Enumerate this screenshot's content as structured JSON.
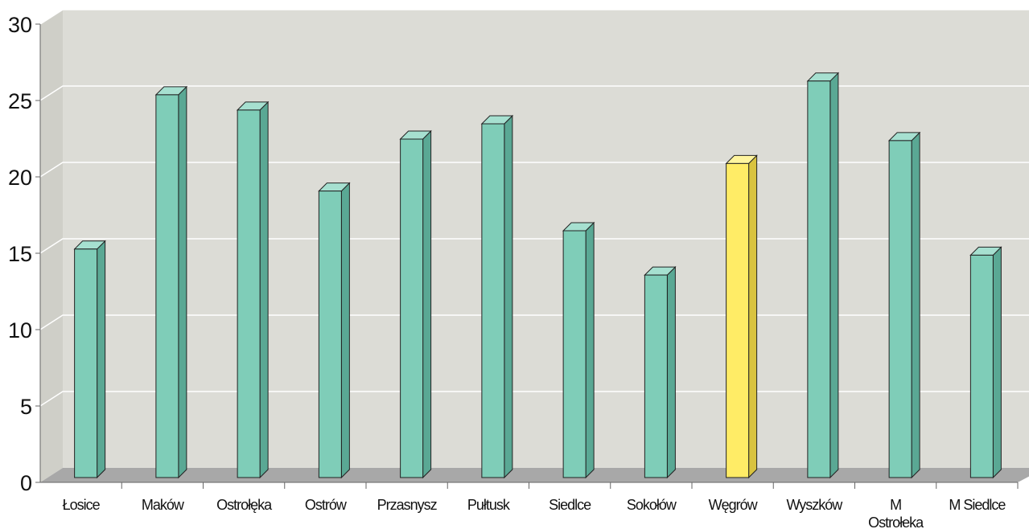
{
  "chart_data": {
    "type": "bar",
    "title": "",
    "xlabel": "",
    "ylabel": "",
    "ylim": [
      0,
      30
    ],
    "yticks": [
      "0",
      "5",
      "10",
      "15",
      "20",
      "25",
      "30"
    ],
    "categories": [
      "Łosice",
      "Maków",
      "Ostrołęka",
      "Ostrów",
      "Przasnysz",
      "Pułtusk",
      "Siedlce",
      "Sokołów",
      "Węgrów",
      "Wyszków",
      "M Ostrołeka",
      "M Siedlce"
    ],
    "category_lines": [
      [
        "Łosice"
      ],
      [
        "Maków"
      ],
      [
        "Ostrołęka"
      ],
      [
        "Ostrów"
      ],
      [
        "Przasnysz"
      ],
      [
        "Pułtusk"
      ],
      [
        "Siedlce"
      ],
      [
        "Sokołów"
      ],
      [
        "Węgrów"
      ],
      [
        "Wyszków"
      ],
      [
        "M",
        "Ostrołeka"
      ],
      [
        "M Siedlce"
      ]
    ],
    "values": [
      15.8,
      25.9,
      24.9,
      19.6,
      23.0,
      24.0,
      17.0,
      14.1,
      21.4,
      26.8,
      22.9,
      15.4
    ],
    "highlight_index": 8,
    "grid": true,
    "legend": "none",
    "style": "3d-columns",
    "colors": {
      "bar": "#7fcdb8",
      "bar_side": "#5aa894",
      "bar_top": "#a6e0d0",
      "highlight": "#ffec66",
      "highlight_side": "#d9c33f",
      "highlight_top": "#fff59e",
      "wall": "#dcdcd6",
      "floor": "#a8a8a8",
      "grid": "#ffffff"
    }
  }
}
